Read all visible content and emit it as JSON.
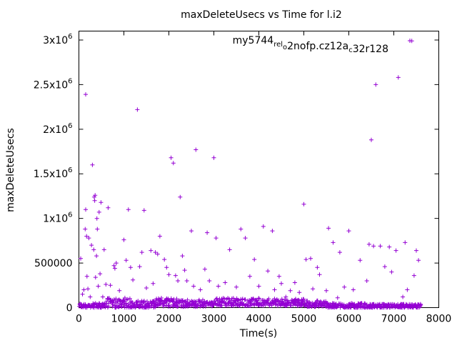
{
  "chart_data": {
    "type": "scatter",
    "title": "maxDeleteUsecs vs Time for l.i2",
    "xlabel": "Time(s)",
    "ylabel": "maxDeleteUsecs",
    "xlim": [
      0,
      8000
    ],
    "ylim": [
      0,
      3100000
    ],
    "x_ticks": [
      0,
      1000,
      2000,
      3000,
      4000,
      5000,
      6000,
      7000,
      8000
    ],
    "x_tick_labels": [
      "0",
      "1000",
      "2000",
      "3000",
      "4000",
      "5000",
      "6000",
      "7000",
      "8000"
    ],
    "y_ticks": [
      0,
      500000,
      1000000,
      1500000,
      2000000,
      2500000,
      3000000
    ],
    "y_tick_labels": [
      {
        "base": "0",
        "exp": ""
      },
      {
        "base": "500000",
        "exp": ""
      },
      {
        "base": "1x10",
        "exp": "6"
      },
      {
        "base": "1.5x10",
        "exp": "6"
      },
      {
        "base": "2x10",
        "exp": "6"
      },
      {
        "base": "2.5x10",
        "exp": "6"
      },
      {
        "base": "3x10",
        "exp": "6"
      }
    ],
    "grid": false,
    "legend_position": "top-right",
    "legend": {
      "parts": [
        {
          "t": "my5744",
          "s": ""
        },
        {
          "t": "rel",
          "s": "sub"
        },
        {
          "t": "o",
          "s": "sub"
        },
        {
          "t": "2nofp.cz12a",
          "s": ""
        },
        {
          "t": "c",
          "s": "sub"
        },
        {
          "t": "32r128",
          "s": ""
        }
      ]
    },
    "series_color": "#9400d3",
    "series": [
      {
        "name": "my5744relo2nofp.cz12ac32r128",
        "points": [
          [
            20,
            40000
          ],
          [
            40,
            550000
          ],
          [
            80,
            150000
          ],
          [
            110,
            200000
          ],
          [
            140,
            880000
          ],
          [
            150,
            1100000
          ],
          [
            150,
            2390000
          ],
          [
            170,
            800000
          ],
          [
            180,
            350000
          ],
          [
            200,
            210000
          ],
          [
            220,
            780000
          ],
          [
            250,
            120000
          ],
          [
            280,
            700000
          ],
          [
            300,
            1600000
          ],
          [
            330,
            650000
          ],
          [
            340,
            1240000
          ],
          [
            350,
            1200000
          ],
          [
            360,
            1260000
          ],
          [
            370,
            340000
          ],
          [
            390,
            580000
          ],
          [
            400,
            1000000
          ],
          [
            410,
            880000
          ],
          [
            430,
            240000
          ],
          [
            450,
            1070000
          ],
          [
            470,
            380000
          ],
          [
            490,
            1180000
          ],
          [
            530,
            120000
          ],
          [
            560,
            650000
          ],
          [
            600,
            260000
          ],
          [
            650,
            1120000
          ],
          [
            700,
            250000
          ],
          [
            780,
            470000
          ],
          [
            800,
            440000
          ],
          [
            830,
            500000
          ],
          [
            900,
            190000
          ],
          [
            1000,
            760000
          ],
          [
            1050,
            530000
          ],
          [
            1100,
            1100000
          ],
          [
            1150,
            450000
          ],
          [
            1200,
            310000
          ],
          [
            1300,
            2220000
          ],
          [
            1350,
            460000
          ],
          [
            1400,
            620000
          ],
          [
            1450,
            1090000
          ],
          [
            1500,
            220000
          ],
          [
            1600,
            640000
          ],
          [
            1650,
            270000
          ],
          [
            1700,
            620000
          ],
          [
            1750,
            600000
          ],
          [
            1800,
            800000
          ],
          [
            1900,
            540000
          ],
          [
            1950,
            450000
          ],
          [
            2000,
            370000
          ],
          [
            2050,
            1680000
          ],
          [
            2100,
            1620000
          ],
          [
            2150,
            360000
          ],
          [
            2200,
            300000
          ],
          [
            2250,
            1240000
          ],
          [
            2300,
            580000
          ],
          [
            2350,
            420000
          ],
          [
            2400,
            300000
          ],
          [
            2500,
            860000
          ],
          [
            2550,
            240000
          ],
          [
            2600,
            1770000
          ],
          [
            2700,
            200000
          ],
          [
            2800,
            430000
          ],
          [
            2850,
            840000
          ],
          [
            2900,
            300000
          ],
          [
            3000,
            1680000
          ],
          [
            3050,
            780000
          ],
          [
            3100,
            240000
          ],
          [
            3250,
            280000
          ],
          [
            3350,
            650000
          ],
          [
            3500,
            230000
          ],
          [
            3600,
            880000
          ],
          [
            3700,
            780000
          ],
          [
            3800,
            350000
          ],
          [
            3900,
            540000
          ],
          [
            4000,
            240000
          ],
          [
            4100,
            910000
          ],
          [
            4200,
            410000
          ],
          [
            4300,
            860000
          ],
          [
            4350,
            200000
          ],
          [
            4450,
            350000
          ],
          [
            4500,
            270000
          ],
          [
            4600,
            120000
          ],
          [
            4700,
            190000
          ],
          [
            4800,
            280000
          ],
          [
            4900,
            170000
          ],
          [
            5000,
            1160000
          ],
          [
            5050,
            540000
          ],
          [
            5150,
            550000
          ],
          [
            5200,
            210000
          ],
          [
            5300,
            450000
          ],
          [
            5350,
            370000
          ],
          [
            5500,
            190000
          ],
          [
            5550,
            890000
          ],
          [
            5650,
            730000
          ],
          [
            5750,
            110000
          ],
          [
            5800,
            620000
          ],
          [
            5900,
            230000
          ],
          [
            6000,
            860000
          ],
          [
            6100,
            200000
          ],
          [
            6250,
            530000
          ],
          [
            6400,
            300000
          ],
          [
            6450,
            710000
          ],
          [
            6500,
            1880000
          ],
          [
            6550,
            690000
          ],
          [
            6600,
            2500000
          ],
          [
            6700,
            690000
          ],
          [
            6800,
            460000
          ],
          [
            6900,
            680000
          ],
          [
            6950,
            400000
          ],
          [
            7050,
            640000
          ],
          [
            7100,
            2580000
          ],
          [
            7200,
            120000
          ],
          [
            7250,
            730000
          ],
          [
            7300,
            200000
          ],
          [
            7400,
            2990000
          ],
          [
            7450,
            360000
          ],
          [
            7500,
            640000
          ],
          [
            7550,
            530000
          ],
          [
            7600,
            30000
          ]
        ],
        "dense_band": [
          {
            "x_from": 0,
            "x_to": 600,
            "y_low": 0,
            "y_high": 50000
          },
          {
            "x_from": 600,
            "x_to": 1200,
            "y_low": 0,
            "y_high": 110000
          },
          {
            "x_from": 1200,
            "x_to": 1700,
            "y_low": 0,
            "y_high": 80000
          },
          {
            "x_from": 1700,
            "x_to": 2300,
            "y_low": 10000,
            "y_high": 110000
          },
          {
            "x_from": 2300,
            "x_to": 3000,
            "y_low": 10000,
            "y_high": 90000
          },
          {
            "x_from": 3000,
            "x_to": 4000,
            "y_low": 20000,
            "y_high": 110000
          },
          {
            "x_from": 4000,
            "x_to": 5000,
            "y_low": 20000,
            "y_high": 100000
          },
          {
            "x_from": 5000,
            "x_to": 5500,
            "y_low": 10000,
            "y_high": 80000
          },
          {
            "x_from": 5500,
            "x_to": 6400,
            "y_low": 0,
            "y_high": 50000
          },
          {
            "x_from": 6400,
            "x_to": 7600,
            "y_low": 0,
            "y_high": 40000
          }
        ]
      }
    ]
  }
}
